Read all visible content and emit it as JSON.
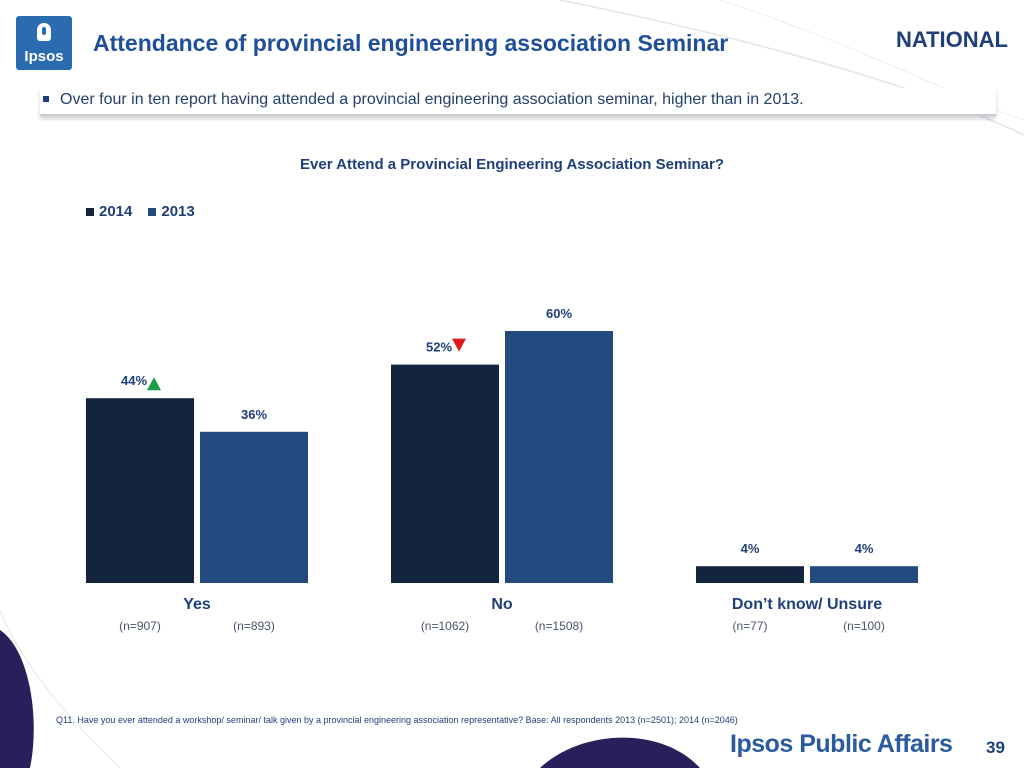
{
  "header": {
    "logo_text": "Ipsos",
    "title": "Attendance of provincial engineering association Seminar",
    "region": "NATIONAL"
  },
  "banner": {
    "text": "Over four in ten report having attended a provincial engineering association seminar, higher than in 2013."
  },
  "colors": {
    "series_2014": "#13243f",
    "series_2013": "#224a7e",
    "up_arrow": "#1a9e4a",
    "down_arrow": "#e0191e",
    "label_text": "#1f3f7a"
  },
  "chart_data": {
    "type": "bar",
    "title": "Ever Attend a Provincial Engineering Association Seminar?",
    "categories": [
      "Yes",
      "No",
      "Don’t know/ Unsure"
    ],
    "series": [
      {
        "name": "2014",
        "values": [
          44,
          52,
          4
        ],
        "labels": [
          "44%",
          "52%",
          "4%"
        ],
        "n": [
          "(n=907)",
          "(n=1062)",
          "(n=77)"
        ],
        "arrows": [
          "up",
          "down",
          ""
        ]
      },
      {
        "name": "2013",
        "values": [
          36,
          60,
          4
        ],
        "labels": [
          "36%",
          "60%",
          "4%"
        ],
        "n": [
          "(n=893)",
          "(n=1508)",
          "(n=100)"
        ],
        "arrows": [
          "",
          "",
          ""
        ]
      }
    ],
    "legend_position": "top-left",
    "grid": false,
    "ylim": [
      0,
      60
    ]
  },
  "footnote": "Q11. Have you ever attended a workshop/ seminar/ talk given by a provincial engineering association representative?  Base: All respondents 2013 (n=2501); 2014 (n=2046)",
  "footer": {
    "brand": "Ipsos Public Affairs",
    "page_number": "39"
  }
}
